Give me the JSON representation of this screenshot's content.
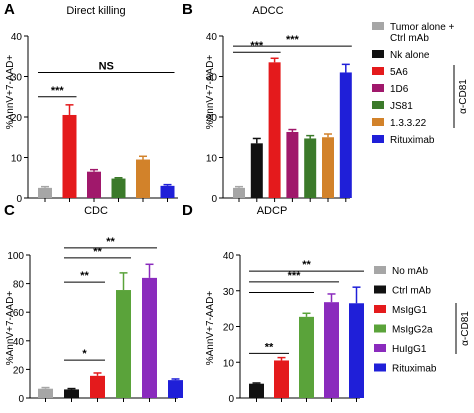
{
  "chart_data": [
    {
      "type": "bar",
      "panel_letter": "A",
      "title": "Direct killing",
      "ylabel": "%AnnV+7-AAD+",
      "ylim": [
        0,
        40
      ],
      "yticks": [
        "0",
        "10",
        "20",
        "30",
        "40"
      ],
      "categories": [
        "Tumor alone + Ctrl mAb",
        "5A6",
        "1D6",
        "JS81",
        "1.3.3.22",
        "Rituximab"
      ],
      "values": [
        2.5,
        20.5,
        6.5,
        4.8,
        9.5,
        3.0
      ],
      "errors": [
        0.3,
        2.5,
        0.5,
        0.2,
        0.8,
        0.3
      ],
      "colors": [
        "#a6a6a6",
        "#e41a1c",
        "#a0186b",
        "#3b7a2a",
        "#d2822a",
        "#1f1fd8"
      ],
      "annotations": [
        {
          "from": 0,
          "to": 5,
          "y": 31,
          "text": "NS"
        },
        {
          "from": 0,
          "to": 1,
          "y": 25,
          "text": "***"
        }
      ],
      "grid": false,
      "legend": "right"
    },
    {
      "type": "bar",
      "panel_letter": "B",
      "title": "ADCC",
      "ylabel": "%AnnV+7-AAD+",
      "ylim": [
        0,
        40
      ],
      "yticks": [
        "0",
        "10",
        "20",
        "30",
        "40"
      ],
      "categories": [
        "Tumor alone + Ctrl mAb",
        "Nk alone",
        "5A6",
        "1D6",
        "JS81",
        "1.3.3.22",
        "Rituximab"
      ],
      "values": [
        2.5,
        13.5,
        33.5,
        16.3,
        14.7,
        15.0,
        31.0
      ],
      "errors": [
        0.3,
        1.2,
        1.0,
        0.6,
        0.7,
        0.8,
        2.0
      ],
      "colors": [
        "#a6a6a6",
        "#111111",
        "#e41a1c",
        "#a0186b",
        "#3b7a2a",
        "#d2822a",
        "#1f1fd8"
      ],
      "annotations": [
        {
          "from": 0,
          "to": 6,
          "y": 37.5,
          "text": "***"
        },
        {
          "from": 0,
          "to": 2,
          "y": 36,
          "text": "***"
        }
      ],
      "legend": {
        "entries": [
          "Tumor alone +\nCtrl mAb",
          "Nk alone",
          "5A6",
          "1D6",
          "JS81",
          "1.3.3.22",
          "Rituximab"
        ],
        "colors": [
          "#a6a6a6",
          "#111111",
          "#e41a1c",
          "#a0186b",
          "#3b7a2a",
          "#d2822a",
          "#1f1fd8"
        ],
        "bracket_label": "α-CD81"
      },
      "grid": false
    },
    {
      "type": "bar",
      "panel_letter": "C",
      "title": "CDC",
      "ylabel": "%AnnV+7-AAD+",
      "ylim": [
        0,
        100
      ],
      "yticks": [
        "0",
        "20",
        "40",
        "60",
        "80",
        "100"
      ],
      "categories": [
        "No mAb",
        "Ctrl mAb",
        "MsIgG1",
        "MsIgG2a",
        "HuIgG1",
        "Rituximab"
      ],
      "values": [
        6.5,
        6.0,
        15.5,
        75.5,
        84.0,
        12.5
      ],
      "errors": [
        0.8,
        0.6,
        2.0,
        12.0,
        9.5,
        0.8
      ],
      "colors": [
        "#a6a6a6",
        "#111111",
        "#e41a1c",
        "#5aa33a",
        "#8a2bbd",
        "#1f1fd8"
      ],
      "annotations": [
        {
          "from": 1,
          "to": 4,
          "y": 105,
          "text": "**"
        },
        {
          "from": 1,
          "to": 3,
          "y": 98,
          "text": "**"
        },
        {
          "from": 1,
          "to": 2,
          "y": 81,
          "text": "**"
        },
        {
          "from": 1,
          "to": 2,
          "y": 26.5,
          "text": "*"
        }
      ],
      "grid": false
    },
    {
      "type": "bar",
      "panel_letter": "D",
      "title": "ADCP",
      "ylabel": "%AnnV+7-AAD+",
      "ylim": [
        0,
        40
      ],
      "yticks": [
        "0",
        "10",
        "20",
        "30",
        "40"
      ],
      "categories": [
        "Ctrl mAb",
        "MsIgG1",
        "MsIgG2a",
        "HuIgG1",
        "Rituximab"
      ],
      "values": [
        4.0,
        10.5,
        22.7,
        26.8,
        26.5
      ],
      "errors": [
        0.2,
        0.8,
        1.0,
        2.3,
        4.5
      ],
      "colors": [
        "#111111",
        "#e41a1c",
        "#5aa33a",
        "#8a2bbd",
        "#1f1fd8"
      ],
      "annotations": [
        {
          "from": 0,
          "to": 4,
          "y": 35.5,
          "text": "**"
        },
        {
          "from": 0,
          "to": 3,
          "y": 32.5,
          "text": "***"
        },
        {
          "from": 0,
          "to": 2,
          "y": 29.5,
          "text": ""
        },
        {
          "from": 0,
          "to": 1,
          "y": 12.5,
          "text": "**"
        }
      ],
      "legend": {
        "entries": [
          "No mAb",
          "Ctrl mAb",
          "MsIgG1",
          "MsIgG2a",
          "HuIgG1",
          "Rituximab"
        ],
        "colors": [
          "#a6a6a6",
          "#111111",
          "#e41a1c",
          "#5aa33a",
          "#8a2bbd",
          "#1f1fd8"
        ],
        "bracket_label": "α-CD81"
      },
      "grid": false
    }
  ]
}
